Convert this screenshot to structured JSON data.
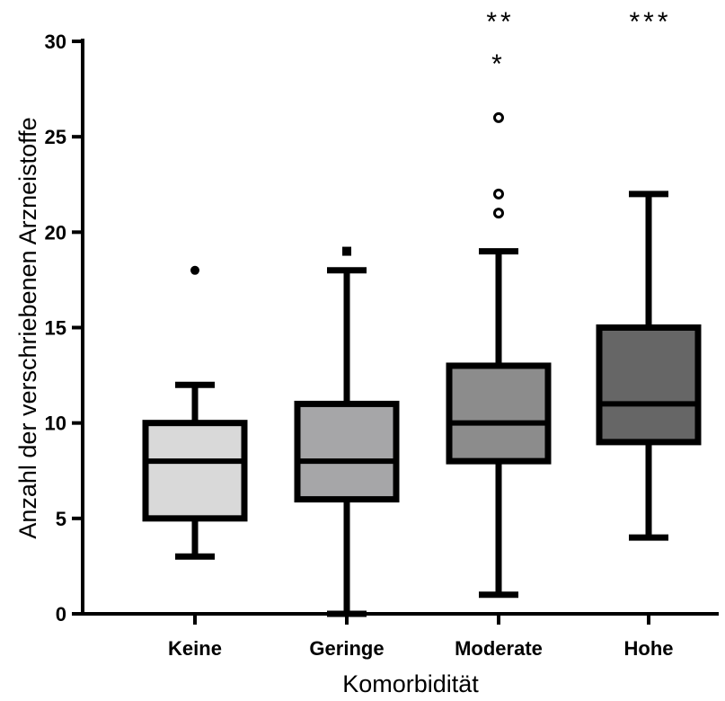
{
  "chart_data": {
    "type": "box",
    "xlabel": "Komorbidität",
    "ylabel": "Anzahl der verschriebenen Arzneistoffe",
    "ylim": [
      0,
      30
    ],
    "yticks": [
      0,
      5,
      10,
      15,
      20,
      25,
      30
    ],
    "grid": false,
    "categories": [
      "Keine",
      "Geringe",
      "Moderate",
      "Hohe"
    ],
    "boxes": [
      {
        "category": "Keine",
        "whisker_low": 3,
        "q1": 5,
        "median": 8,
        "q3": 10,
        "whisker_high": 12,
        "fill": "#d9d9d9",
        "outliers": [
          {
            "value": 18,
            "marker": "dot"
          }
        ],
        "significance": ""
      },
      {
        "category": "Geringe",
        "whisker_low": 0,
        "q1": 6,
        "median": 8,
        "q3": 11,
        "whisker_high": 18,
        "fill": "#a6a6a8",
        "outliers": [
          {
            "value": 19,
            "marker": "square"
          }
        ],
        "significance": ""
      },
      {
        "category": "Moderate",
        "whisker_low": 1,
        "q1": 8,
        "median": 10,
        "q3": 13,
        "whisker_high": 19,
        "fill": "#8c8c8c",
        "outliers": [
          {
            "value": 21,
            "marker": "circle"
          },
          {
            "value": 22,
            "marker": "circle"
          },
          {
            "value": 26,
            "marker": "circle"
          },
          {
            "value": 29,
            "marker": "asterisk"
          }
        ],
        "significance": "**"
      },
      {
        "category": "Hohe",
        "whisker_low": 4,
        "q1": 9,
        "median": 11,
        "q3": 15,
        "whisker_high": 22,
        "fill": "#666666",
        "outliers": [],
        "significance": "***"
      }
    ]
  }
}
